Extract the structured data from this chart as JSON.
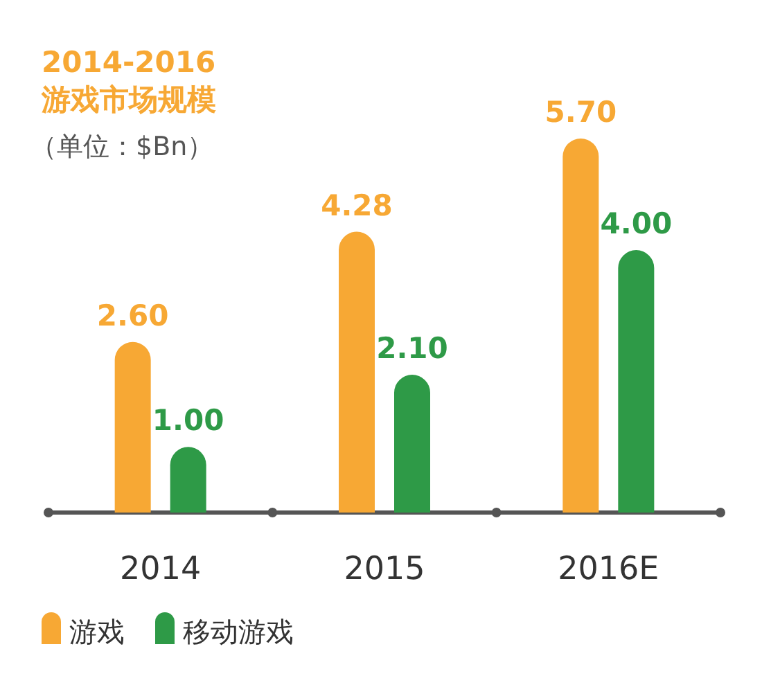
{
  "chart_data": {
    "type": "bar",
    "title": "2014-2016\n游戏市场规模",
    "subtitle": "（单位：$Bn）",
    "categories": [
      "2014",
      "2015",
      "2016E"
    ],
    "series": [
      {
        "name": "游戏",
        "color": "#f7a834",
        "values": [
          2.6,
          4.28,
          5.7
        ],
        "value_labels": [
          "2.60",
          "4.28",
          "5.70"
        ]
      },
      {
        "name": "移动游戏",
        "color": "#2e9a47",
        "values": [
          1.0,
          2.1,
          4.0
        ],
        "value_labels": [
          "1.00",
          "2.10",
          "4.00"
        ]
      }
    ],
    "legend": "bottom left",
    "tick_labels": "x"
  }
}
